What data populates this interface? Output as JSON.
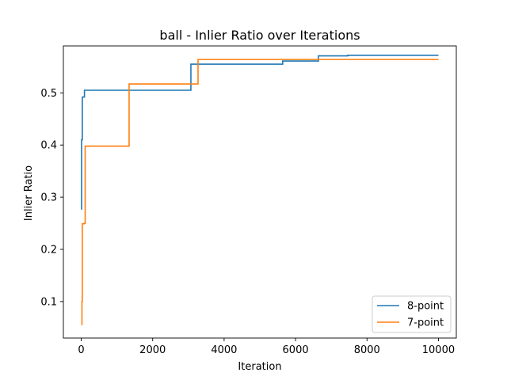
{
  "chart_data": {
    "type": "line",
    "title": "ball - Inlier Ratio over Iterations",
    "xlabel": "Iteration",
    "ylabel": "Inlier Ratio",
    "xlim": [
      -500,
      10500
    ],
    "ylim": [
      0.03,
      0.59
    ],
    "xticks": [
      0,
      2000,
      4000,
      6000,
      8000,
      10000
    ],
    "xtick_labels": [
      "0",
      "2000",
      "4000",
      "6000",
      "8000",
      "10000"
    ],
    "yticks": [
      0.1,
      0.2,
      0.3,
      0.4,
      0.5
    ],
    "ytick_labels": [
      "0.1",
      "0.2",
      "0.3",
      "0.4",
      "0.5"
    ],
    "grid": false,
    "legend": "bottom-right",
    "step": "post",
    "series": [
      {
        "name": "8-point",
        "color": "#1f77b4",
        "points": [
          [
            0,
            0.277
          ],
          [
            10,
            0.41
          ],
          [
            30,
            0.492
          ],
          [
            80,
            0.492
          ],
          [
            90,
            0.505
          ],
          [
            3060,
            0.505
          ],
          [
            3070,
            0.555
          ],
          [
            5630,
            0.555
          ],
          [
            5640,
            0.561
          ],
          [
            6630,
            0.561
          ],
          [
            6640,
            0.571
          ],
          [
            7450,
            0.571
          ],
          [
            7460,
            0.572
          ],
          [
            10000,
            0.572
          ]
        ]
      },
      {
        "name": "7-point",
        "color": "#ff7f0e",
        "points": [
          [
            0,
            0.056
          ],
          [
            20,
            0.1
          ],
          [
            30,
            0.249
          ],
          [
            70,
            0.249
          ],
          [
            80,
            0.25
          ],
          [
            100,
            0.25
          ],
          [
            110,
            0.398
          ],
          [
            1330,
            0.398
          ],
          [
            1340,
            0.517
          ],
          [
            3260,
            0.517
          ],
          [
            3270,
            0.564
          ],
          [
            10000,
            0.564
          ]
        ]
      }
    ]
  }
}
